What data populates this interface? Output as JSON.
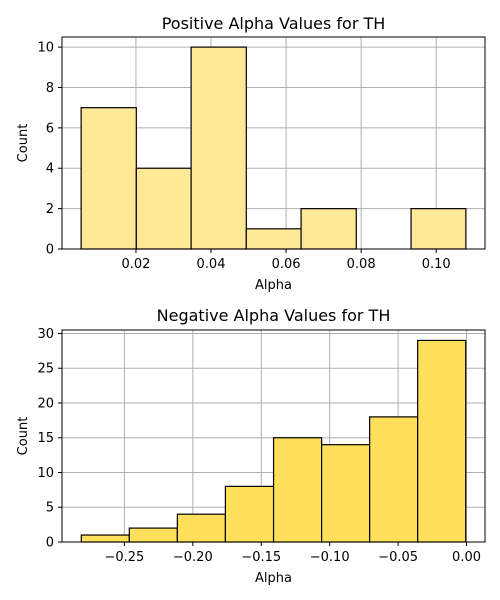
{
  "chart_data": [
    {
      "type": "bar",
      "title": "Positive Alpha Values for TH",
      "xlabel": "Alpha",
      "ylabel": "Count",
      "bin_edges": [
        0.0054,
        0.0201,
        0.0347,
        0.0494,
        0.064,
        0.0787,
        0.0933,
        0.1079
      ],
      "values": [
        7,
        4,
        10,
        1,
        2,
        0,
        2
      ],
      "xlim": [
        0.0003,
        0.113
      ],
      "ylim": [
        0,
        10.5
      ],
      "xticks": [
        0.02,
        0.04,
        0.06,
        0.08,
        0.1
      ],
      "xtick_labels": [
        "0.02",
        "0.04",
        "0.06",
        "0.08",
        "0.10"
      ],
      "yticks": [
        0,
        2,
        4,
        6,
        8,
        10
      ],
      "ytick_labels": [
        "0",
        "2",
        "4",
        "6",
        "8",
        "10"
      ],
      "grid": true,
      "bar_color": "#FFE896"
    },
    {
      "type": "bar",
      "title": "Negative Alpha Values for TH",
      "xlabel": "Alpha",
      "ylabel": "Count",
      "bin_edges": [
        -0.2815,
        -0.2464,
        -0.2113,
        -0.1762,
        -0.141,
        -0.1059,
        -0.0708,
        -0.0357,
        -0.0006
      ],
      "values": [
        1,
        2,
        4,
        8,
        15,
        14,
        18,
        29
      ],
      "xlim": [
        -0.2956,
        0.0135
      ],
      "ylim": [
        0,
        30.5
      ],
      "xticks": [
        -0.25,
        -0.2,
        -0.15,
        -0.1,
        -0.05,
        0.0
      ],
      "xtick_labels": [
        "−0.25",
        "−0.20",
        "−0.15",
        "−0.10",
        "−0.05",
        "0.00"
      ],
      "yticks": [
        0,
        5,
        10,
        15,
        20,
        25,
        30
      ],
      "ytick_labels": [
        "0",
        "5",
        "10",
        "15",
        "20",
        "25",
        "30"
      ],
      "grid": true,
      "bar_color": "#FFDF5C"
    }
  ]
}
